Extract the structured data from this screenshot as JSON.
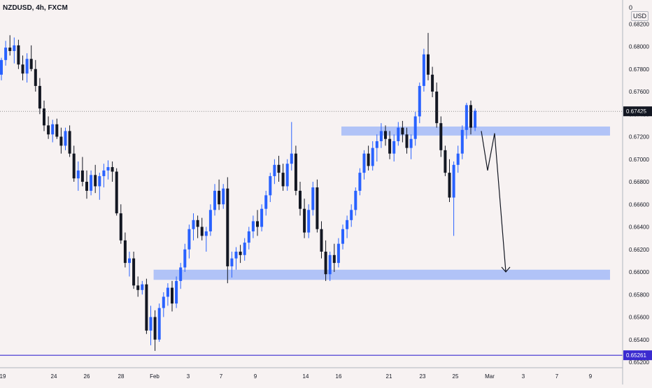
{
  "header": {
    "symbol": "NZDUSD, 4h, FXCM",
    "price_menu": "0",
    "currency": "USD"
  },
  "colors": {
    "background": "#f7f2f2",
    "bull": "#2962ff",
    "bear": "#131722",
    "zone": "#9fb6f7",
    "support_line": "#3a2bd0",
    "current_price_bg": "#131722",
    "axis_text": "#131722"
  },
  "chart_data": {
    "type": "candlestick",
    "title": "NZDUSD, 4h, FXCM",
    "y_axis": {
      "range": [
        0.652,
        0.684
      ],
      "ticks": [
        "0.68200",
        "0.68000",
        "0.67800",
        "0.67600",
        "0.67400",
        "0.67200",
        "0.67000",
        "0.66800",
        "0.66600",
        "0.66400",
        "0.66200",
        "0.66000",
        "0.65800",
        "0.65600",
        "0.65400",
        "0.65200"
      ],
      "position": "right"
    },
    "x_axis": {
      "ticks": [
        "19",
        "24",
        "26",
        "28",
        "Feb",
        "3",
        "7",
        "9",
        "14",
        "16",
        "21",
        "23",
        "25",
        "Mar",
        "3",
        "7",
        "9"
      ]
    },
    "current_price": "0.67425",
    "horizontal_line": {
      "price": 0.65261,
      "label": "0.65261"
    },
    "zones": [
      {
        "name": "resistance-zone",
        "from": 0.6721,
        "to": 0.6729,
        "start_index": 80
      },
      {
        "name": "support-zone",
        "from": 0.6593,
        "to": 0.6602,
        "start_index": 36
      }
    ],
    "projection": {
      "path": [
        0.6725,
        0.669,
        0.6723,
        0.66
      ],
      "end_label": ""
    },
    "candles": [
      [
        0.6775,
        0.679,
        0.677,
        0.6788
      ],
      [
        0.6788,
        0.6805,
        0.6783,
        0.6799
      ],
      [
        0.6799,
        0.681,
        0.6792,
        0.6796
      ],
      [
        0.6796,
        0.6808,
        0.6785,
        0.6801
      ],
      [
        0.6801,
        0.6806,
        0.678,
        0.6784
      ],
      [
        0.6784,
        0.6792,
        0.677,
        0.6776
      ],
      [
        0.6776,
        0.6794,
        0.6768,
        0.6789
      ],
      [
        0.6789,
        0.6801,
        0.6778,
        0.678
      ],
      [
        0.678,
        0.6788,
        0.676,
        0.6765
      ],
      [
        0.6765,
        0.6772,
        0.674,
        0.6745
      ],
      [
        0.6745,
        0.6752,
        0.6725,
        0.673
      ],
      [
        0.673,
        0.6738,
        0.6718,
        0.6722
      ],
      [
        0.6722,
        0.6735,
        0.6715,
        0.6731
      ],
      [
        0.6731,
        0.6736,
        0.6718,
        0.672
      ],
      [
        0.672,
        0.6728,
        0.6705,
        0.6712
      ],
      [
        0.6712,
        0.6728,
        0.6708,
        0.6725
      ],
      [
        0.6725,
        0.673,
        0.6702,
        0.6705
      ],
      [
        0.6705,
        0.6712,
        0.668,
        0.6683
      ],
      [
        0.6683,
        0.6698,
        0.6672,
        0.669
      ],
      [
        0.669,
        0.6702,
        0.6676,
        0.668
      ],
      [
        0.668,
        0.669,
        0.6665,
        0.6672
      ],
      [
        0.6672,
        0.669,
        0.6668,
        0.6686
      ],
      [
        0.6686,
        0.6695,
        0.667,
        0.6676
      ],
      [
        0.6676,
        0.6688,
        0.6664,
        0.6685
      ],
      [
        0.6685,
        0.6696,
        0.6675,
        0.669
      ],
      [
        0.669,
        0.6699,
        0.6682,
        0.6693
      ],
      [
        0.6693,
        0.6698,
        0.668,
        0.6689
      ],
      [
        0.6689,
        0.6692,
        0.665,
        0.6652
      ],
      [
        0.6652,
        0.666,
        0.6625,
        0.6628
      ],
      [
        0.6628,
        0.6635,
        0.6604,
        0.6608
      ],
      [
        0.6608,
        0.6618,
        0.6596,
        0.6612
      ],
      [
        0.6612,
        0.6618,
        0.6585,
        0.6588
      ],
      [
        0.6588,
        0.6596,
        0.6578,
        0.6584
      ],
      [
        0.6584,
        0.6592,
        0.658,
        0.6589
      ],
      [
        0.6589,
        0.6594,
        0.6545,
        0.6548
      ],
      [
        0.6548,
        0.657,
        0.6535,
        0.656
      ],
      [
        0.656,
        0.6566,
        0.653,
        0.654
      ],
      [
        0.654,
        0.6572,
        0.6538,
        0.6568
      ],
      [
        0.6568,
        0.6582,
        0.656,
        0.6578
      ],
      [
        0.6578,
        0.659,
        0.657,
        0.6586
      ],
      [
        0.6586,
        0.6592,
        0.6565,
        0.6572
      ],
      [
        0.6572,
        0.6596,
        0.6568,
        0.6592
      ],
      [
        0.6592,
        0.6608,
        0.6585,
        0.6604
      ],
      [
        0.6604,
        0.6625,
        0.66,
        0.662
      ],
      [
        0.662,
        0.6642,
        0.6612,
        0.6638
      ],
      [
        0.6638,
        0.6652,
        0.6628,
        0.6646
      ],
      [
        0.6646,
        0.665,
        0.663,
        0.664
      ],
      [
        0.664,
        0.6648,
        0.6628,
        0.6632
      ],
      [
        0.6632,
        0.664,
        0.6618,
        0.6636
      ],
      [
        0.6636,
        0.666,
        0.6632,
        0.6655
      ],
      [
        0.6655,
        0.6678,
        0.665,
        0.6672
      ],
      [
        0.6672,
        0.6682,
        0.6655,
        0.666
      ],
      [
        0.666,
        0.6678,
        0.6656,
        0.6674
      ],
      [
        0.6674,
        0.6684,
        0.659,
        0.6605
      ],
      [
        0.6605,
        0.6618,
        0.6595,
        0.6612
      ],
      [
        0.6612,
        0.6622,
        0.6602,
        0.6618
      ],
      [
        0.6618,
        0.6624,
        0.6608,
        0.6615
      ],
      [
        0.6615,
        0.663,
        0.661,
        0.6626
      ],
      [
        0.6626,
        0.664,
        0.662,
        0.6636
      ],
      [
        0.6636,
        0.665,
        0.663,
        0.6645
      ],
      [
        0.6645,
        0.6655,
        0.6632,
        0.664
      ],
      [
        0.664,
        0.666,
        0.6636,
        0.6656
      ],
      [
        0.6656,
        0.6672,
        0.665,
        0.6668
      ],
      [
        0.6668,
        0.6688,
        0.6662,
        0.6685
      ],
      [
        0.6685,
        0.67,
        0.6678,
        0.6695
      ],
      [
        0.6695,
        0.6703,
        0.668,
        0.6688
      ],
      [
        0.6688,
        0.6696,
        0.6672,
        0.6676
      ],
      [
        0.6676,
        0.67,
        0.6672,
        0.6696
      ],
      [
        0.6696,
        0.6733,
        0.669,
        0.6705
      ],
      [
        0.6705,
        0.6712,
        0.6668,
        0.6672
      ],
      [
        0.6672,
        0.668,
        0.665,
        0.6656
      ],
      [
        0.6656,
        0.6665,
        0.663,
        0.6635
      ],
      [
        0.6635,
        0.666,
        0.663,
        0.6655
      ],
      [
        0.6655,
        0.668,
        0.665,
        0.6675
      ],
      [
        0.6675,
        0.6682,
        0.6635,
        0.6638
      ],
      [
        0.6638,
        0.6645,
        0.6612,
        0.6618
      ],
      [
        0.6618,
        0.6628,
        0.6592,
        0.6598
      ],
      [
        0.6598,
        0.6618,
        0.6592,
        0.6615
      ],
      [
        0.6615,
        0.6625,
        0.66,
        0.6608
      ],
      [
        0.6608,
        0.663,
        0.6604,
        0.6625
      ],
      [
        0.6625,
        0.6642,
        0.662,
        0.6638
      ],
      [
        0.6638,
        0.665,
        0.663,
        0.6646
      ],
      [
        0.6646,
        0.666,
        0.664,
        0.6655
      ],
      [
        0.6655,
        0.6675,
        0.665,
        0.6672
      ],
      [
        0.6672,
        0.6692,
        0.6668,
        0.6688
      ],
      [
        0.6688,
        0.6708,
        0.6682,
        0.6705
      ],
      [
        0.6705,
        0.6712,
        0.669,
        0.6694
      ],
      [
        0.6694,
        0.6716,
        0.669,
        0.671
      ],
      [
        0.671,
        0.6722,
        0.6698,
        0.6716
      ],
      [
        0.6716,
        0.6732,
        0.671,
        0.6725
      ],
      [
        0.6725,
        0.673,
        0.6712,
        0.6718
      ],
      [
        0.6718,
        0.6725,
        0.67,
        0.6705
      ],
      [
        0.6705,
        0.6722,
        0.6698,
        0.6716
      ],
      [
        0.6716,
        0.6733,
        0.6712,
        0.6728
      ],
      [
        0.6728,
        0.6734,
        0.6715,
        0.6722
      ],
      [
        0.6722,
        0.6728,
        0.6705,
        0.671
      ],
      [
        0.671,
        0.6722,
        0.67,
        0.6718
      ],
      [
        0.6718,
        0.6742,
        0.6712,
        0.6738
      ],
      [
        0.6738,
        0.6768,
        0.6732,
        0.6765
      ],
      [
        0.6765,
        0.6798,
        0.676,
        0.6793
      ],
      [
        0.6793,
        0.6812,
        0.677,
        0.6775
      ],
      [
        0.6775,
        0.6782,
        0.6755,
        0.676
      ],
      [
        0.676,
        0.6768,
        0.6728,
        0.6732
      ],
      [
        0.6732,
        0.6738,
        0.6702,
        0.6708
      ],
      [
        0.6708,
        0.6712,
        0.6685,
        0.6688
      ],
      [
        0.6688,
        0.67,
        0.6662,
        0.6666
      ],
      [
        0.6666,
        0.6698,
        0.6632,
        0.6695
      ],
      [
        0.6695,
        0.6712,
        0.6688,
        0.6705
      ],
      [
        0.6705,
        0.673,
        0.67,
        0.6726
      ],
      [
        0.6726,
        0.675,
        0.6718,
        0.6748
      ],
      [
        0.6748,
        0.6752,
        0.6722,
        0.6728
      ],
      [
        0.6728,
        0.6745,
        0.6725,
        0.6743
      ]
    ]
  }
}
